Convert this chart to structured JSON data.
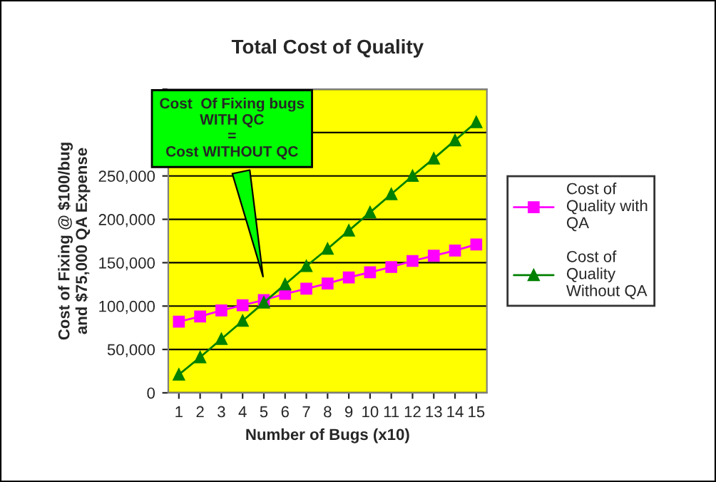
{
  "chart_data": {
    "type": "line",
    "title": "Total Cost of Quality",
    "xlabel": "Number of Bugs (x10)",
    "ylabel": "Cost of Fixing @ $100/bug\nand $75,000 QA Expense",
    "categories": [
      "1",
      "2",
      "3",
      "4",
      "5",
      "6",
      "7",
      "8",
      "9",
      "10",
      "11",
      "12",
      "13",
      "14",
      "15"
    ],
    "series": [
      {
        "name": "Cost of Quality with QA",
        "color": "#ff00ff",
        "marker": "square",
        "values": [
          82000,
          88000,
          95000,
          101000,
          107000,
          114000,
          120000,
          126000,
          133000,
          139000,
          145000,
          152000,
          158000,
          164000,
          171000
        ]
      },
      {
        "name": "Cost of Quality Without QA",
        "color": "#008000",
        "marker": "triangle",
        "values": [
          21000,
          41000,
          62000,
          83000,
          104000,
          125000,
          146000,
          166000,
          187000,
          208000,
          229000,
          250000,
          270000,
          291000,
          312000
        ]
      }
    ],
    "ylim": [
      0,
      350000
    ],
    "yticks": [
      {
        "value": 0,
        "label": "0"
      },
      {
        "value": 50000,
        "label": "50,000"
      },
      {
        "value": 100000,
        "label": "100,000"
      },
      {
        "value": 150000,
        "label": "150,000"
      },
      {
        "value": 200000,
        "label": "200,000"
      },
      {
        "value": 250000,
        "label": "250,000"
      },
      {
        "value": 300000,
        "label": null
      },
      {
        "value": 350000,
        "label": null
      }
    ],
    "grid": "y",
    "legend": "right",
    "annotations": [
      "Cost  Of Fixing bugs\nWITH QC\n=\nCost WITHOUT QC"
    ]
  }
}
